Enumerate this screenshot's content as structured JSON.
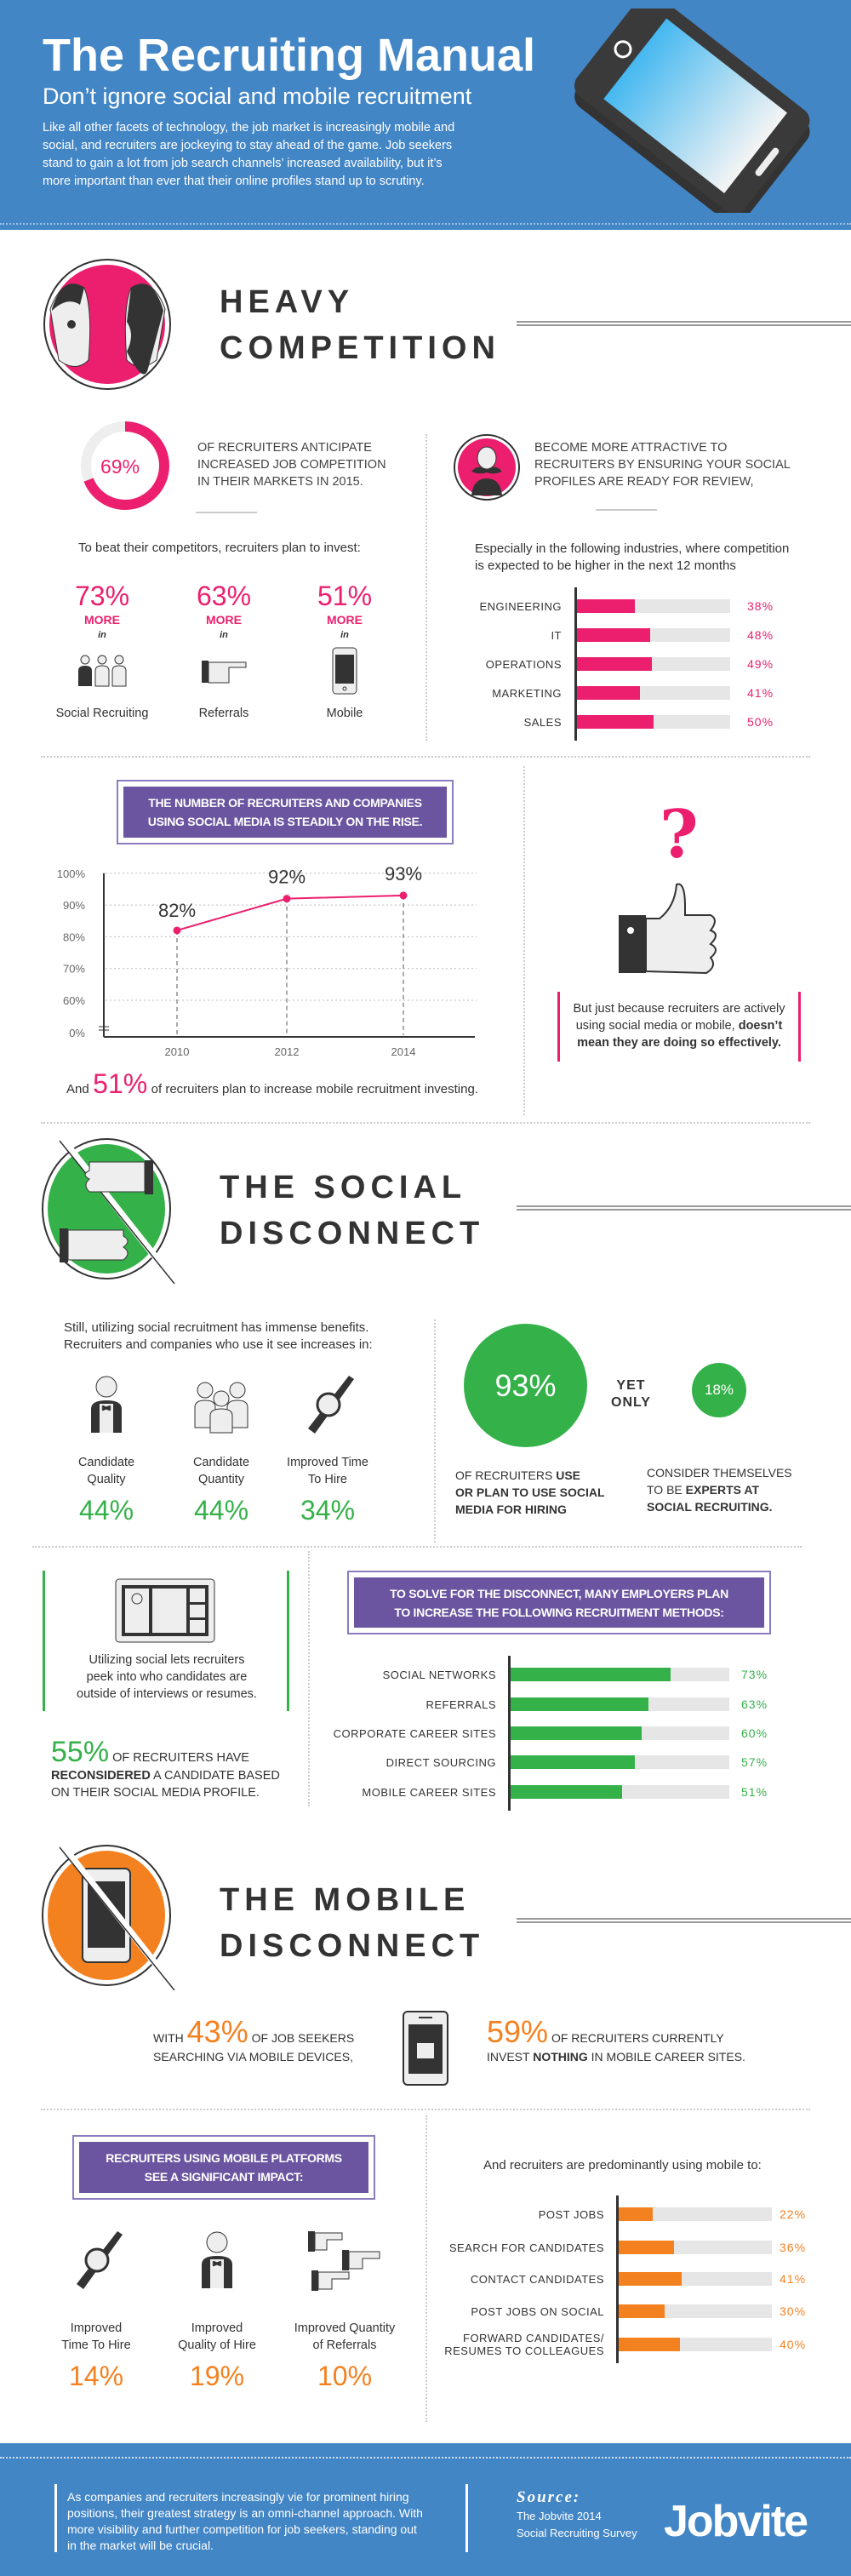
{
  "colors": {
    "blue": "#4386c6",
    "pink": "#ec1f6e",
    "green": "#35b14a",
    "orange": "#f48120",
    "purple": "#6b55a0"
  },
  "header": {
    "title": "The Recruiting Manual",
    "subtitle": "Don’t ignore social and mobile recruitment",
    "body": [
      "Like all other facets of technology, the job market is increasingly mobile and",
      "social, and recruiters are jockeying to stay ahead of the game. Job seekers",
      "stand to gain a lot from job search channels’ increased availability, but it’s",
      "more important than ever that their online profiles stand up to scrutiny."
    ],
    "icon": "smartphone-social-icons"
  },
  "competition": {
    "heading": [
      "HEAVY",
      "COMPETITION"
    ],
    "donut": {
      "value": 69,
      "label": "69%",
      "text": [
        "OF RECRUITERS ANTICIPATE",
        "INCREASED JOB COMPETITION",
        "IN THEIR MARKETS IN 2015."
      ]
    },
    "attractive": [
      "BECOME MORE ATTRACTIVE TO",
      "RECRUITERS BY ENSURING YOUR SOCIAL",
      "PROFILES ARE READY FOR REVIEW,"
    ],
    "invest_intro": "To beat their competitors, recruiters plan to invest:",
    "invest": [
      {
        "pct": "73%",
        "more": "MORE",
        "in": "in",
        "label": "Social Recruiting",
        "icon": "people-icon"
      },
      {
        "pct": "63%",
        "more": "MORE",
        "in": "in",
        "label": "Referrals",
        "icon": "pointing-hand-icon"
      },
      {
        "pct": "51%",
        "more": "MORE",
        "in": "in",
        "label": "Mobile",
        "icon": "phone-icon"
      }
    ],
    "industries_intro": [
      "Especially in the following industries, where competition",
      "is expected to be higher in the next 12 months"
    ],
    "industries": [
      {
        "label": "ENGINEERING",
        "value": 38,
        "pct": "38%"
      },
      {
        "label": "IT",
        "value": 48,
        "pct": "48%"
      },
      {
        "label": "OPERATIONS",
        "value": 49,
        "pct": "49%"
      },
      {
        "label": "MARKETING",
        "value": 41,
        "pct": "41%"
      },
      {
        "label": "SALES",
        "value": 50,
        "pct": "50%"
      }
    ]
  },
  "rise": {
    "box": [
      "THE NUMBER OF RECRUITERS AND COMPANIES",
      "USING SOCIAL MEDIA IS STEADILY ON THE RISE."
    ],
    "mobile_invest": {
      "pre": "And",
      "pct": "51%",
      "post": "of recruiters plan to increase mobile recruitment investing."
    },
    "question": "?",
    "caveat": {
      "text": "But just because recruiters are actively using social media or mobile, ",
      "bold": "doesn’t mean they are doing so effectively."
    }
  },
  "chart_data": {
    "type": "line",
    "x": [
      "2010",
      "2012",
      "2014"
    ],
    "values": [
      82,
      92,
      93
    ],
    "labels": [
      "82%",
      "92%",
      "93%"
    ],
    "yticks": [
      "100%",
      "90%",
      "80%",
      "70%",
      "60%",
      "0%"
    ],
    "ylim": [
      0,
      100
    ],
    "axis_break": true,
    "grid": true,
    "title": "",
    "xlabel": "",
    "ylabel": ""
  },
  "social": {
    "heading": [
      "THE SOCIAL",
      "DISCONNECT"
    ],
    "intro": [
      "Still, utilizing social recruitment has immense benefits.",
      "Recruiters and companies who use it see increases in:"
    ],
    "benefits": [
      {
        "label": [
          "Candidate",
          "Quality"
        ],
        "pct": "44%",
        "icon": "tuxedo-person-icon"
      },
      {
        "label": [
          "Candidate",
          "Quantity"
        ],
        "pct": "44%",
        "icon": "group-icon"
      },
      {
        "label": [
          "Improved Time",
          "To Hire"
        ],
        "pct": "34%",
        "icon": "watch-icon"
      }
    ],
    "big": {
      "pct": "93%",
      "text_pre": "OF RECRUITERS ",
      "text_bold1": "USE",
      "text_bold2": "OR PLAN TO USE SOCIAL",
      "text_bold3": "MEDIA FOR HIRING"
    },
    "yet": [
      "YET",
      "ONLY"
    ],
    "small": {
      "pct": "18%",
      "line1": "CONSIDER THEMSELVES",
      "line2_pre": "TO BE ",
      "line2_bold": "EXPERTS AT",
      "line3": "SOCIAL RECRUITING."
    },
    "peek": [
      "Utilizing social lets recruiters",
      "peek into who candidates are",
      "outside of interviews or resumes."
    ],
    "reconsider": {
      "pct": "55%",
      "pre": "OF RECRUITERS HAVE",
      "bold": "RECONSIDERED",
      "post": " A CANDIDATE BASED",
      "line3": "ON THEIR SOCIAL MEDIA PROFILE."
    },
    "methods_box": [
      "TO SOLVE FOR THE DISCONNECT, MANY EMPLOYERS PLAN",
      "TO INCREASE THE FOLLOWING RECRUITMENT METHODS:"
    ],
    "methods": [
      {
        "label": "SOCIAL NETWORKS",
        "value": 73,
        "pct": "73%"
      },
      {
        "label": "REFERRALS",
        "value": 63,
        "pct": "63%"
      },
      {
        "label": "CORPORATE CAREER SITES",
        "value": 60,
        "pct": "60%"
      },
      {
        "label": "DIRECT SOURCING",
        "value": 57,
        "pct": "57%"
      },
      {
        "label": "MOBILE CAREER SITES",
        "value": 51,
        "pct": "51%"
      }
    ]
  },
  "mobile": {
    "heading": [
      "THE MOBILE",
      "DISCONNECT"
    ],
    "left": {
      "pre": "WITH",
      "pct": "43%",
      "post": "OF JOB SEEKERS",
      "line2": "SEARCHING VIA MOBILE DEVICES,"
    },
    "right": {
      "pct": "59%",
      "post": "OF RECRUITERS CURRENTLY",
      "line2_pre": "INVEST ",
      "line2_bold": "NOTHING",
      "line2_post": " IN MOBILE CAREER SITES."
    },
    "impact_box": [
      "RECRUITERS USING MOBILE PLATFORMS",
      "SEE A SIGNIFICANT IMPACT:"
    ],
    "impacts": [
      {
        "label": [
          "Improved",
          "Time To Hire"
        ],
        "pct": "14%",
        "icon": "watch-icon"
      },
      {
        "label": [
          "Improved",
          "Quality of Hire"
        ],
        "pct": "19%",
        "icon": "tuxedo-person-icon"
      },
      {
        "label": [
          "Improved Quantity",
          "of Referrals"
        ],
        "pct": "10%",
        "icon": "pointing-hands-icon"
      }
    ],
    "uses_intro": "And recruiters are predominantly using mobile to:",
    "uses": [
      {
        "label": "POST JOBS",
        "value": 22,
        "pct": "22%"
      },
      {
        "label": "SEARCH FOR CANDIDATES",
        "value": 36,
        "pct": "36%"
      },
      {
        "label": "CONTACT CANDIDATES",
        "value": 41,
        "pct": "41%"
      },
      {
        "label": "POST JOBS ON SOCIAL",
        "value": 30,
        "pct": "30%"
      },
      {
        "label": "FORWARD CANDIDATES/\nRESUMES TO COLLEAGUES",
        "value": 40,
        "pct": "40%"
      }
    ]
  },
  "footer": {
    "text": [
      "As companies and recruiters increasingly vie for prominent hiring",
      "positions, their greatest strategy is an omni-channel approach. With",
      "more visibility and further competition for job seekers, standing out",
      "in the market will be crucial."
    ],
    "source_label": "Source:",
    "source": [
      "The Jobvite 2014",
      "Social Recruiting Survey"
    ],
    "logo": "Jobvite"
  }
}
